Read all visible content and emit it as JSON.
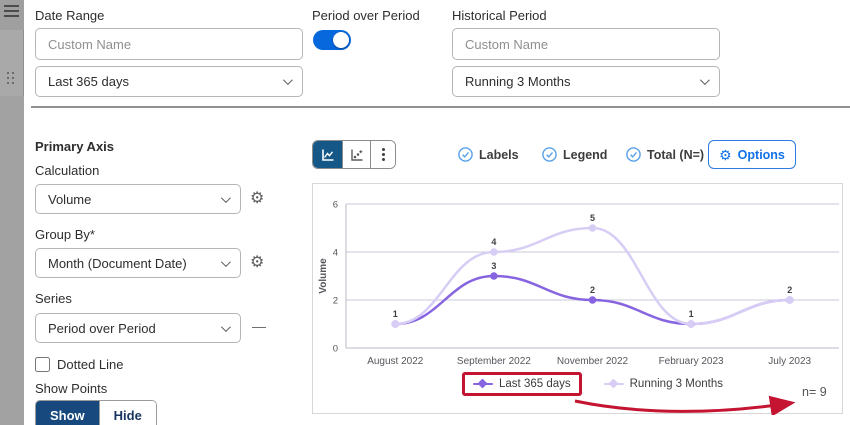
{
  "colors": {
    "accent_blue": "#0768dd",
    "selected_segment_blue": "#155887",
    "check_blue": "#57a0e8",
    "options_blue": "#1172e8",
    "show_button_blue": "#17497e",
    "annotation_red": "#c41431"
  },
  "icons": {
    "gear": "⚙"
  },
  "top_bar": {
    "date_range": {
      "label": "Date Range",
      "custom_name_placeholder": "Custom Name",
      "selected_option": "Last 365 days"
    },
    "period_over_period": {
      "label": "Period over Period",
      "enabled": true
    },
    "historical_period": {
      "label": "Historical Period",
      "custom_name_placeholder": "Custom Name",
      "selected_option": "Running 3 Months"
    }
  },
  "sidebar": {
    "title": "Primary Axis",
    "calculation_label": "Calculation",
    "calculation_value": "Volume",
    "group_by_label": "Group By*",
    "group_by_value": "Month (Document Date)",
    "series_label": "Series",
    "series_value": "Period over Period",
    "remove_series_label": "—",
    "dotted_line_label": "Dotted Line",
    "dotted_line_checked": false,
    "show_points_label": "Show Points",
    "show_label": "Show",
    "hide_label": "Hide",
    "show_points_selected": "Show"
  },
  "toolbar": {
    "toggles": [
      {
        "label": "Labels",
        "checked": true
      },
      {
        "label": "Legend",
        "checked": true
      },
      {
        "label": "Total (N=)",
        "checked": true
      }
    ],
    "options_label": "Options"
  },
  "chart_data": {
    "type": "line",
    "title": "",
    "categories": [
      "August 2022",
      "September 2022",
      "November 2022",
      "February 2023",
      "July 2023"
    ],
    "series": [
      {
        "name": "Last 365 days",
        "color": "#8765e0",
        "values": [
          1,
          3,
          2,
          1,
          2
        ]
      },
      {
        "name": "Running 3 Months",
        "color": "#d8cef5",
        "values": [
          1,
          4,
          5,
          1,
          2
        ]
      }
    ],
    "xlabel": "",
    "ylabel": "Volume",
    "ylim": [
      0,
      6
    ],
    "yticks": [
      0,
      2,
      4,
      6
    ],
    "grid": true,
    "point_labels": true,
    "legend_position": "bottom",
    "total_label": "n= 9"
  },
  "annotation": {
    "highlight_series": "Last 365 days",
    "color": "#c41431",
    "points_to": "n= 9"
  }
}
